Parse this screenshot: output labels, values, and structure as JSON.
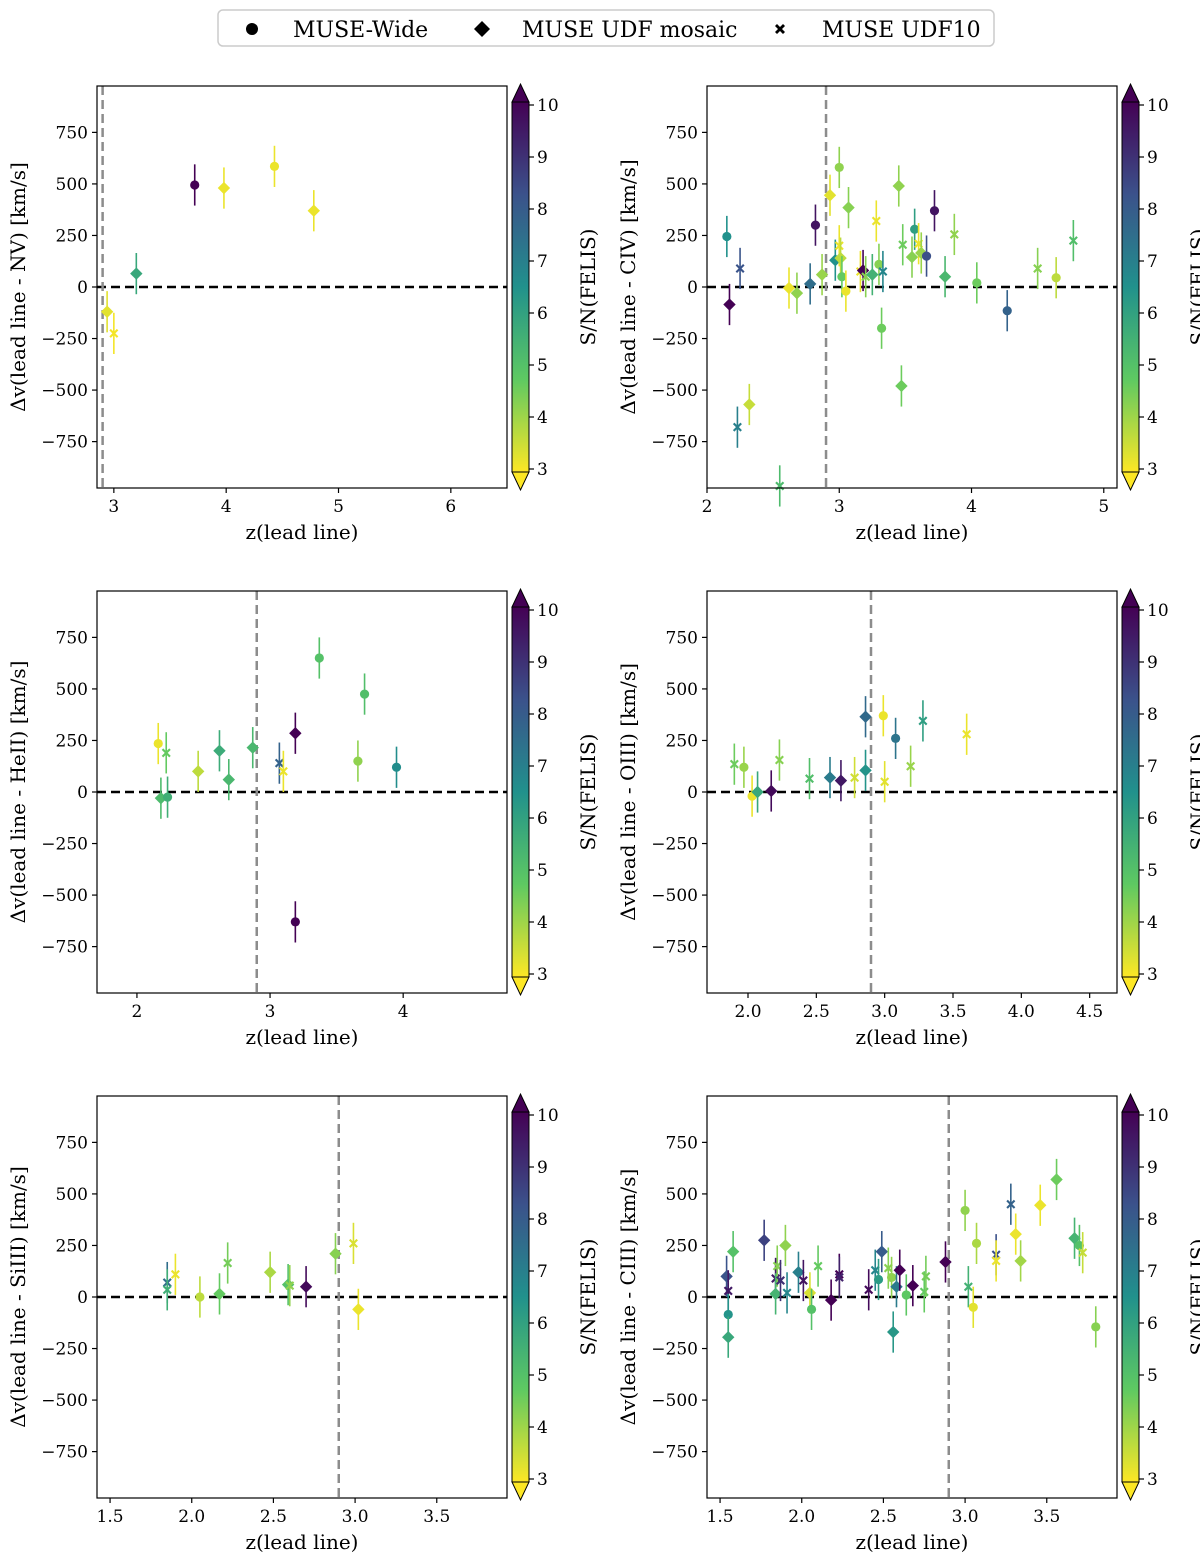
{
  "legend": {
    "entries": [
      {
        "label": "MUSE-Wide",
        "marker": "circle"
      },
      {
        "label": "MUSE UDF mosaic",
        "marker": "diamond"
      },
      {
        "label": "MUSE UDF10",
        "marker": "cross"
      }
    ]
  },
  "colorbar": {
    "label": "S/N(FELIS)",
    "range": [
      3,
      10
    ],
    "ticks": [
      "3",
      "4",
      "5",
      "6",
      "7",
      "8",
      "9",
      "10"
    ],
    "colors": [
      "#fde725",
      "#5ec962",
      "#21918c",
      "#3b528b",
      "#440154"
    ]
  },
  "chart_data": [
    {
      "type": "scatter",
      "ylabel": "Δv(lead line - NV) [km/s]",
      "xlabel": "z(lead line)",
      "xlim": [
        2.85,
        6.5
      ],
      "ylim": [
        -975,
        975
      ],
      "xticks": [
        3,
        4,
        5,
        6
      ],
      "yticks": [
        -750,
        -500,
        -250,
        0,
        250,
        500,
        750
      ],
      "vline": 2.9,
      "points": [
        {
          "x": 2.94,
          "y": -120,
          "sn": 3.3,
          "m": "d"
        },
        {
          "x": 3.0,
          "y": -225,
          "sn": 3.1,
          "m": "x"
        },
        {
          "x": 3.2,
          "y": 65,
          "sn": 5.8,
          "m": "d"
        },
        {
          "x": 3.72,
          "y": 495,
          "sn": 10,
          "m": "o"
        },
        {
          "x": 3.98,
          "y": 480,
          "sn": 3.2,
          "m": "d"
        },
        {
          "x": 4.43,
          "y": 585,
          "sn": 3.2,
          "m": "o"
        },
        {
          "x": 4.78,
          "y": 370,
          "sn": 3.2,
          "m": "d"
        }
      ]
    },
    {
      "type": "scatter",
      "ylabel": "Δv(lead line - CIV) [km/s]",
      "xlabel": "z(lead line)",
      "xlim": [
        2.0,
        5.1
      ],
      "ylim": [
        -975,
        975
      ],
      "xticks": [
        2,
        3,
        4,
        5
      ],
      "yticks": [
        -750,
        -500,
        -250,
        0,
        250,
        500,
        750
      ],
      "vline": 2.9,
      "points": [
        {
          "x": 2.15,
          "y": 245,
          "sn": 6.5,
          "m": "o"
        },
        {
          "x": 2.17,
          "y": -85,
          "sn": 10,
          "m": "d"
        },
        {
          "x": 2.23,
          "y": -680,
          "sn": 7,
          "m": "x"
        },
        {
          "x": 2.25,
          "y": 90,
          "sn": 8.2,
          "m": "x"
        },
        {
          "x": 2.32,
          "y": -570,
          "sn": 3.6,
          "m": "d"
        },
        {
          "x": 2.55,
          "y": -965,
          "sn": 5.2,
          "m": "x"
        },
        {
          "x": 2.62,
          "y": -5,
          "sn": 3.2,
          "m": "d"
        },
        {
          "x": 2.68,
          "y": -30,
          "sn": 4.2,
          "m": "d"
        },
        {
          "x": 2.78,
          "y": 15,
          "sn": 7.5,
          "m": "d"
        },
        {
          "x": 2.82,
          "y": 300,
          "sn": 9.6,
          "m": "o"
        },
        {
          "x": 2.87,
          "y": 60,
          "sn": 4.1,
          "m": "d"
        },
        {
          "x": 2.93,
          "y": 445,
          "sn": 3.3,
          "m": "d"
        },
        {
          "x": 2.97,
          "y": 130,
          "sn": 6.5,
          "m": "d"
        },
        {
          "x": 3.0,
          "y": 200,
          "sn": 3.2,
          "m": "x"
        },
        {
          "x": 3.0,
          "y": 580,
          "sn": 4.2,
          "m": "o"
        },
        {
          "x": 3.01,
          "y": 140,
          "sn": 3.7,
          "m": "d"
        },
        {
          "x": 3.02,
          "y": 50,
          "sn": 4.7,
          "m": "o"
        },
        {
          "x": 3.05,
          "y": -20,
          "sn": 3.2,
          "m": "o"
        },
        {
          "x": 3.07,
          "y": 385,
          "sn": 4.3,
          "m": "d"
        },
        {
          "x": 3.16,
          "y": 75,
          "sn": 3.2,
          "m": "x"
        },
        {
          "x": 3.18,
          "y": 80,
          "sn": 10,
          "m": "d"
        },
        {
          "x": 3.2,
          "y": 50,
          "sn": 4.3,
          "m": "x"
        },
        {
          "x": 3.25,
          "y": 60,
          "sn": 5.5,
          "m": "d"
        },
        {
          "x": 3.28,
          "y": 320,
          "sn": 3.2,
          "m": "x"
        },
        {
          "x": 3.3,
          "y": 110,
          "sn": 4.3,
          "m": "o"
        },
        {
          "x": 3.32,
          "y": -200,
          "sn": 4.6,
          "m": "o"
        },
        {
          "x": 3.33,
          "y": 75,
          "sn": 6.8,
          "m": "x"
        },
        {
          "x": 3.45,
          "y": 490,
          "sn": 4.2,
          "m": "d"
        },
        {
          "x": 3.47,
          "y": -480,
          "sn": 4.6,
          "m": "d"
        },
        {
          "x": 3.48,
          "y": 205,
          "sn": 4.6,
          "m": "x"
        },
        {
          "x": 3.55,
          "y": 145,
          "sn": 4.3,
          "m": "d"
        },
        {
          "x": 3.57,
          "y": 280,
          "sn": 6.1,
          "m": "o"
        },
        {
          "x": 3.6,
          "y": 210,
          "sn": 3.2,
          "m": "x"
        },
        {
          "x": 3.62,
          "y": 165,
          "sn": 4.1,
          "m": "d"
        },
        {
          "x": 3.66,
          "y": 150,
          "sn": 8.3,
          "m": "o"
        },
        {
          "x": 3.72,
          "y": 370,
          "sn": 9.6,
          "m": "o"
        },
        {
          "x": 3.8,
          "y": 50,
          "sn": 5.3,
          "m": "d"
        },
        {
          "x": 3.87,
          "y": 255,
          "sn": 4.2,
          "m": "x"
        },
        {
          "x": 4.04,
          "y": 20,
          "sn": 4.6,
          "m": "o"
        },
        {
          "x": 4.27,
          "y": -115,
          "sn": 7.8,
          "m": "o"
        },
        {
          "x": 4.5,
          "y": 90,
          "sn": 4.3,
          "m": "x"
        },
        {
          "x": 4.64,
          "y": 45,
          "sn": 3.7,
          "m": "o"
        },
        {
          "x": 4.77,
          "y": 225,
          "sn": 5.1,
          "m": "x"
        }
      ]
    },
    {
      "type": "scatter",
      "ylabel": "Δv(lead line - HeII) [km/s]",
      "xlabel": "z(lead line)",
      "xlim": [
        1.7,
        4.78
      ],
      "ylim": [
        -975,
        975
      ],
      "xticks": [
        2,
        3,
        4
      ],
      "yticks": [
        -750,
        -500,
        -250,
        0,
        250,
        500,
        750
      ],
      "vline": 2.9,
      "points": [
        {
          "x": 2.16,
          "y": 235,
          "sn": 3.2,
          "m": "o"
        },
        {
          "x": 2.18,
          "y": -30,
          "sn": 5.2,
          "m": "d"
        },
        {
          "x": 2.22,
          "y": 190,
          "sn": 4.7,
          "m": "x"
        },
        {
          "x": 2.23,
          "y": -25,
          "sn": 5.6,
          "m": "o"
        },
        {
          "x": 2.46,
          "y": 100,
          "sn": 3.7,
          "m": "d"
        },
        {
          "x": 2.62,
          "y": 200,
          "sn": 5.7,
          "m": "d"
        },
        {
          "x": 2.69,
          "y": 60,
          "sn": 5.3,
          "m": "d"
        },
        {
          "x": 2.87,
          "y": 215,
          "sn": 5.3,
          "m": "d"
        },
        {
          "x": 3.07,
          "y": 140,
          "sn": 7.8,
          "m": "x"
        },
        {
          "x": 3.1,
          "y": 100,
          "sn": 3.2,
          "m": "x"
        },
        {
          "x": 3.19,
          "y": 285,
          "sn": 10,
          "m": "d"
        },
        {
          "x": 3.19,
          "y": -630,
          "sn": 10,
          "m": "o"
        },
        {
          "x": 3.37,
          "y": 650,
          "sn": 5,
          "m": "o"
        },
        {
          "x": 3.66,
          "y": 150,
          "sn": 4.2,
          "m": "o"
        },
        {
          "x": 3.71,
          "y": 475,
          "sn": 5.1,
          "m": "o"
        },
        {
          "x": 3.95,
          "y": 120,
          "sn": 6.6,
          "m": "o"
        }
      ]
    },
    {
      "type": "scatter",
      "ylabel": "Δv(lead line - OIII) [km/s]",
      "xlabel": "z(lead line)",
      "xlim": [
        1.7,
        4.7
      ],
      "ylim": [
        -975,
        975
      ],
      "xticks": [
        2.0,
        2.5,
        3.0,
        3.5,
        4.0,
        4.5
      ],
      "yticks": [
        -750,
        -500,
        -250,
        0,
        250,
        500,
        750
      ],
      "vline": 2.9,
      "points": [
        {
          "x": 1.9,
          "y": 135,
          "sn": 4.6,
          "m": "x"
        },
        {
          "x": 1.97,
          "y": 120,
          "sn": 4.1,
          "m": "o"
        },
        {
          "x": 2.03,
          "y": -20,
          "sn": 3.2,
          "m": "o"
        },
        {
          "x": 2.07,
          "y": 0,
          "sn": 5.8,
          "m": "d"
        },
        {
          "x": 2.17,
          "y": 5,
          "sn": 9.8,
          "m": "d"
        },
        {
          "x": 2.23,
          "y": 155,
          "sn": 4.3,
          "m": "x"
        },
        {
          "x": 2.45,
          "y": 65,
          "sn": 5.1,
          "m": "x"
        },
        {
          "x": 2.6,
          "y": 70,
          "sn": 7.1,
          "m": "d"
        },
        {
          "x": 2.68,
          "y": 55,
          "sn": 9.5,
          "m": "d"
        },
        {
          "x": 2.78,
          "y": 70,
          "sn": 3.5,
          "m": "x"
        },
        {
          "x": 2.86,
          "y": 365,
          "sn": 7.6,
          "m": "d"
        },
        {
          "x": 2.86,
          "y": 105,
          "sn": 6.4,
          "m": "d"
        },
        {
          "x": 2.99,
          "y": 370,
          "sn": 3.2,
          "m": "o"
        },
        {
          "x": 3.0,
          "y": 50,
          "sn": 3.3,
          "m": "x"
        },
        {
          "x": 3.08,
          "y": 260,
          "sn": 7.3,
          "m": "o"
        },
        {
          "x": 3.19,
          "y": 125,
          "sn": 4.1,
          "m": "x"
        },
        {
          "x": 3.28,
          "y": 345,
          "sn": 6.1,
          "m": "x"
        },
        {
          "x": 3.6,
          "y": 280,
          "sn": 3.2,
          "m": "x"
        }
      ]
    },
    {
      "type": "scatter",
      "ylabel": "Δv(lead line - SiIII) [km/s]",
      "xlabel": "z(lead line)",
      "xlim": [
        1.42,
        3.93
      ],
      "ylim": [
        -975,
        975
      ],
      "xticks": [
        1.5,
        2.0,
        2.5,
        3.0,
        3.5
      ],
      "yticks": [
        -750,
        -500,
        -250,
        0,
        250,
        500,
        750
      ],
      "vline": 2.9,
      "points": [
        {
          "x": 1.85,
          "y": 70,
          "sn": 7.5,
          "m": "x"
        },
        {
          "x": 1.85,
          "y": 35,
          "sn": 5.6,
          "m": "x"
        },
        {
          "x": 1.9,
          "y": 110,
          "sn": 3.2,
          "m": "x"
        },
        {
          "x": 2.05,
          "y": 0,
          "sn": 3.7,
          "m": "o"
        },
        {
          "x": 2.17,
          "y": 15,
          "sn": 4.7,
          "m": "d"
        },
        {
          "x": 2.22,
          "y": 165,
          "sn": 4.5,
          "m": "x"
        },
        {
          "x": 2.48,
          "y": 120,
          "sn": 3.9,
          "m": "d"
        },
        {
          "x": 2.59,
          "y": 60,
          "sn": 5.0,
          "m": "d"
        },
        {
          "x": 2.6,
          "y": 55,
          "sn": 4.2,
          "m": "x"
        },
        {
          "x": 2.7,
          "y": 50,
          "sn": 9.8,
          "m": "d"
        },
        {
          "x": 2.88,
          "y": 210,
          "sn": 4.3,
          "m": "d"
        },
        {
          "x": 2.99,
          "y": 260,
          "sn": 3.4,
          "m": "x"
        },
        {
          "x": 3.02,
          "y": -60,
          "sn": 3.2,
          "m": "d"
        }
      ]
    },
    {
      "type": "scatter",
      "ylabel": "Δv(lead line - CIII) [km/s]",
      "xlabel": "z(lead line)",
      "xlim": [
        1.42,
        3.93
      ],
      "ylim": [
        -975,
        975
      ],
      "xticks": [
        1.5,
        2.0,
        2.5,
        3.0,
        3.5
      ],
      "yticks": [
        -750,
        -500,
        -250,
        0,
        250,
        500,
        750
      ],
      "vline": 2.9,
      "points": [
        {
          "x": 1.54,
          "y": 100,
          "sn": 8.2,
          "m": "d"
        },
        {
          "x": 1.55,
          "y": 30,
          "sn": 9.5,
          "m": "x"
        },
        {
          "x": 1.55,
          "y": -85,
          "sn": 6.4,
          "m": "o"
        },
        {
          "x": 1.55,
          "y": -195,
          "sn": 5.8,
          "m": "d"
        },
        {
          "x": 1.58,
          "y": 220,
          "sn": 5.0,
          "m": "d"
        },
        {
          "x": 1.77,
          "y": 275,
          "sn": 8.6,
          "m": "d"
        },
        {
          "x": 1.84,
          "y": 90,
          "sn": 9.5,
          "m": "x"
        },
        {
          "x": 1.84,
          "y": 15,
          "sn": 5.4,
          "m": "d"
        },
        {
          "x": 1.85,
          "y": 150,
          "sn": 4.3,
          "m": "x"
        },
        {
          "x": 1.87,
          "y": 80,
          "sn": 9.0,
          "m": "x"
        },
        {
          "x": 1.9,
          "y": 250,
          "sn": 4.2,
          "m": "d"
        },
        {
          "x": 1.91,
          "y": 20,
          "sn": 6.8,
          "m": "x"
        },
        {
          "x": 1.98,
          "y": 120,
          "sn": 7.0,
          "m": "d"
        },
        {
          "x": 2.01,
          "y": 80,
          "sn": 9.6,
          "m": "x"
        },
        {
          "x": 2.05,
          "y": 20,
          "sn": 3.4,
          "m": "d"
        },
        {
          "x": 2.06,
          "y": -60,
          "sn": 5.0,
          "m": "o"
        },
        {
          "x": 2.1,
          "y": 150,
          "sn": 4.7,
          "m": "x"
        },
        {
          "x": 2.18,
          "y": -15,
          "sn": 10,
          "m": "d"
        },
        {
          "x": 2.23,
          "y": 110,
          "sn": 10,
          "m": "x"
        },
        {
          "x": 2.23,
          "y": 95,
          "sn": 9.3,
          "m": "x"
        },
        {
          "x": 2.41,
          "y": 35,
          "sn": 9.8,
          "m": "x"
        },
        {
          "x": 2.45,
          "y": 130,
          "sn": 6.8,
          "m": "x"
        },
        {
          "x": 2.47,
          "y": 85,
          "sn": 6.2,
          "m": "o"
        },
        {
          "x": 2.49,
          "y": 220,
          "sn": 8.0,
          "m": "d"
        },
        {
          "x": 2.53,
          "y": 140,
          "sn": 4.3,
          "m": "x"
        },
        {
          "x": 2.55,
          "y": 95,
          "sn": 4.2,
          "m": "o"
        },
        {
          "x": 2.56,
          "y": -170,
          "sn": 6.3,
          "m": "d"
        },
        {
          "x": 2.58,
          "y": 50,
          "sn": 7.1,
          "m": "d"
        },
        {
          "x": 2.6,
          "y": 130,
          "sn": 10,
          "m": "d"
        },
        {
          "x": 2.64,
          "y": 10,
          "sn": 4.8,
          "m": "o"
        },
        {
          "x": 2.68,
          "y": 55,
          "sn": 10,
          "m": "d"
        },
        {
          "x": 2.75,
          "y": 25,
          "sn": 4.7,
          "m": "x"
        },
        {
          "x": 2.76,
          "y": 100,
          "sn": 4.5,
          "m": "x"
        },
        {
          "x": 2.88,
          "y": 170,
          "sn": 10,
          "m": "d"
        },
        {
          "x": 3.0,
          "y": 420,
          "sn": 4.2,
          "m": "o"
        },
        {
          "x": 3.02,
          "y": 50,
          "sn": 5.5,
          "m": "x"
        },
        {
          "x": 3.05,
          "y": -50,
          "sn": 3.3,
          "m": "o"
        },
        {
          "x": 3.07,
          "y": 260,
          "sn": 3.9,
          "m": "o"
        },
        {
          "x": 3.19,
          "y": 205,
          "sn": 8.3,
          "m": "x"
        },
        {
          "x": 3.19,
          "y": 175,
          "sn": 3.2,
          "m": "x"
        },
        {
          "x": 3.28,
          "y": 450,
          "sn": 7.8,
          "m": "x"
        },
        {
          "x": 3.31,
          "y": 305,
          "sn": 3.2,
          "m": "d"
        },
        {
          "x": 3.34,
          "y": 175,
          "sn": 4.0,
          "m": "d"
        },
        {
          "x": 3.46,
          "y": 445,
          "sn": 3.2,
          "m": "d"
        },
        {
          "x": 3.56,
          "y": 570,
          "sn": 4.6,
          "m": "d"
        },
        {
          "x": 3.67,
          "y": 285,
          "sn": 5.4,
          "m": "d"
        },
        {
          "x": 3.7,
          "y": 250,
          "sn": 5.0,
          "m": "o"
        },
        {
          "x": 3.72,
          "y": 215,
          "sn": 3.6,
          "m": "x"
        },
        {
          "x": 3.8,
          "y": -145,
          "sn": 4.3,
          "m": "o"
        }
      ]
    }
  ]
}
